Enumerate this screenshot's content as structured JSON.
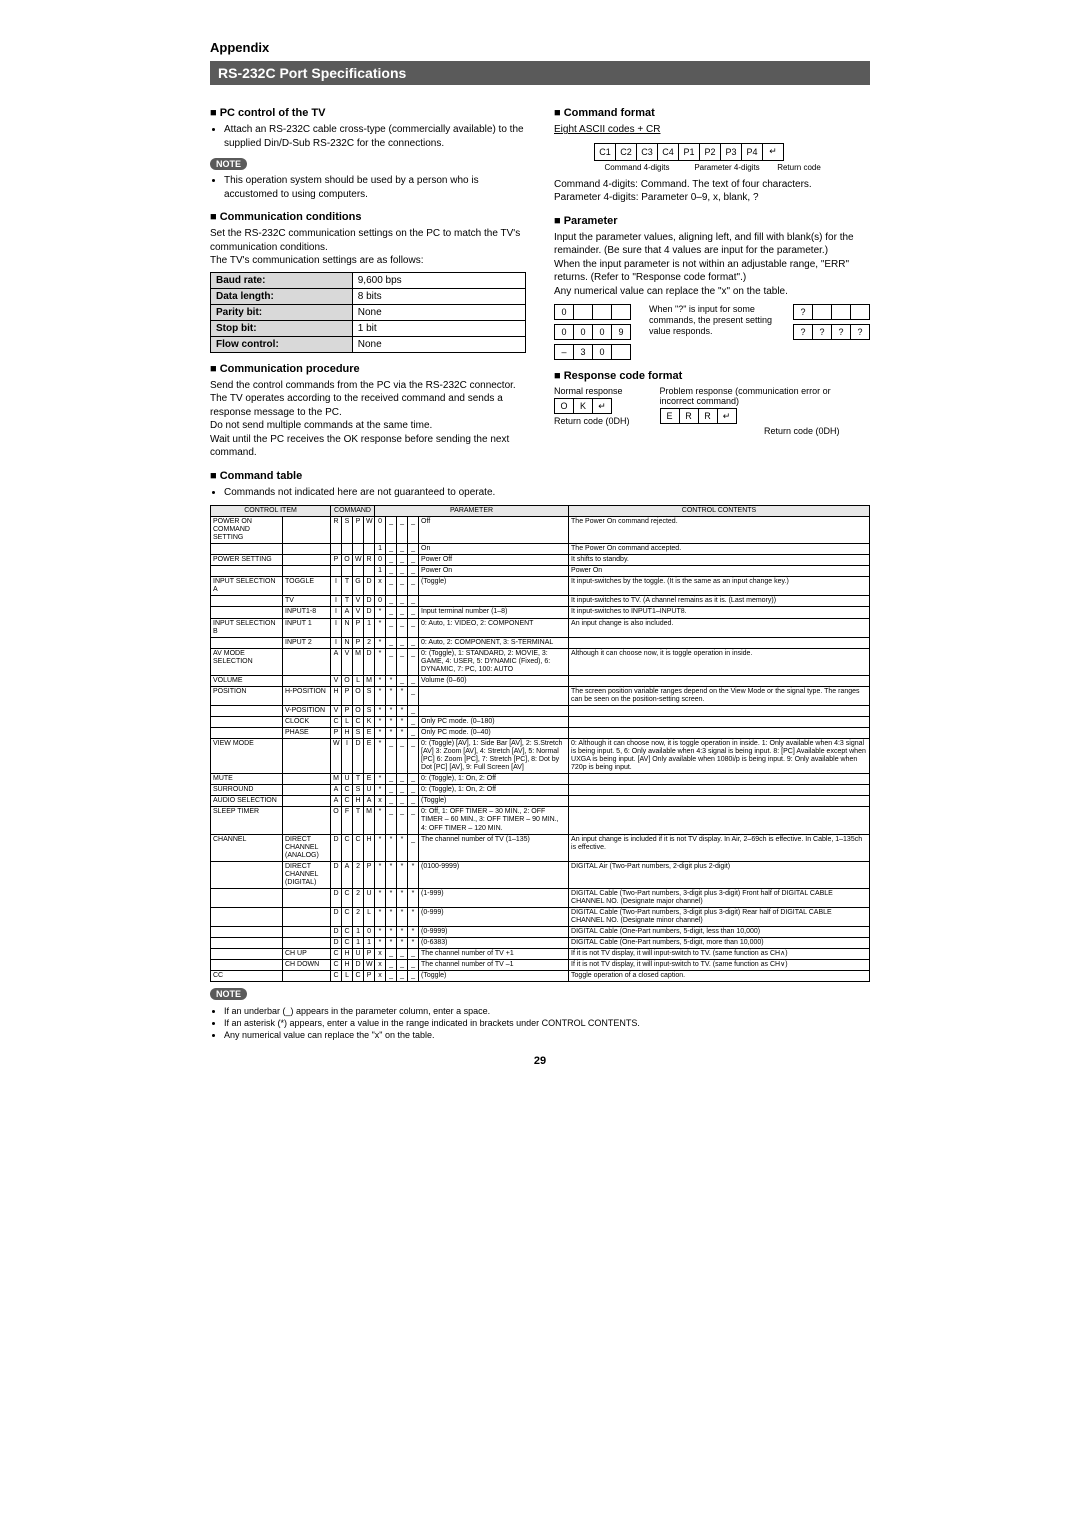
{
  "appendix": "Appendix",
  "banner": "RS-232C Port Specifications",
  "pc_control": {
    "title": "PC control of the TV",
    "bullet": "Attach an RS-232C cable cross-type (commercially available) to the supplied Din/D-Sub RS-232C for the connections."
  },
  "note_label": "NOTE",
  "note1": "This operation system should be used by a person who is accustomed to using computers.",
  "comm_cond": {
    "title": "Communication conditions",
    "p1": "Set the RS-232C communication settings on the PC to match the TV's communication conditions.",
    "p2": "The TV's communication settings are as follows:",
    "rows": [
      [
        "Baud rate:",
        "9,600 bps"
      ],
      [
        "Data length:",
        "8 bits"
      ],
      [
        "Parity bit:",
        "None"
      ],
      [
        "Stop bit:",
        "1 bit"
      ],
      [
        "Flow control:",
        "None"
      ]
    ]
  },
  "comm_proc": {
    "title": "Communication procedure",
    "p1": "Send the control commands from the PC via the RS-232C connector.",
    "p2": "The TV operates according to the received command and sends a response message to the PC.",
    "p3": "Do not send multiple commands at the same time.",
    "p4": "Wait until the PC receives the OK response before sending the next command."
  },
  "cmd_format": {
    "title": "Command format",
    "sub": "Eight ASCII codes + CR",
    "cells": [
      "C1",
      "C2",
      "C3",
      "C4",
      "P1",
      "P2",
      "P3",
      "P4",
      "↵"
    ],
    "label_cmd": "Command 4-digits",
    "label_param": "Parameter 4-digits",
    "label_ret": "Return code",
    "desc1": "Command 4-digits: Command. The text of four characters.",
    "desc2": "Parameter 4-digits: Parameter 0–9, x, blank, ?"
  },
  "parameter": {
    "title": "Parameter",
    "p1": "Input the parameter values, aligning left, and fill with blank(s) for the remainder. (Be sure that 4 values are input for the parameter.)",
    "p2": "When the input parameter is not within an adjustable range, \"ERR\" returns. (Refer to \"Response code format\".)",
    "p3": "Any numerical value can replace the \"x\" on the table.",
    "side_text": "When \"?\" is input for some commands, the present setting value responds.",
    "rows_left": [
      [
        "0",
        "",
        "",
        ""
      ],
      [
        "0",
        "0",
        "0",
        "9"
      ],
      [
        "–",
        "3",
        "0",
        ""
      ]
    ],
    "rows_right": [
      [
        "?",
        "",
        "",
        ""
      ],
      [
        "?",
        "?",
        "?",
        "?"
      ]
    ]
  },
  "response": {
    "title": "Response code format",
    "normal_label": "Normal response",
    "normal_cells": [
      "O",
      "K",
      "↵"
    ],
    "normal_ret": "Return code (0DH)",
    "problem_label": "Problem response (communication error or incorrect command)",
    "problem_cells": [
      "E",
      "R",
      "R",
      "↵"
    ],
    "problem_ret": "Return code (0DH)"
  },
  "cmd_table": {
    "title": "Command table",
    "intro": "Commands not indicated here are not guaranteed to operate.",
    "headers": [
      "CONTROL ITEM",
      "COMMAND",
      "PARAMETER",
      "CONTROL CONTENTS"
    ],
    "rows": [
      {
        "i1": "POWER ON COMMAND SETTING",
        "i2": "",
        "cmd": [
          "R",
          "S",
          "P",
          "W"
        ],
        "p": [
          "0",
          "_",
          "_",
          "_"
        ],
        "param": "Off",
        "cc": "The Power On command rejected."
      },
      {
        "i1": "",
        "i2": "",
        "cmd": [
          "",
          "",
          "",
          ""
        ],
        "p": [
          "1",
          "_",
          "_",
          "_"
        ],
        "param": "On",
        "cc": "The Power On command accepted."
      },
      {
        "i1": "POWER SETTING",
        "i2": "",
        "cmd": [
          "P",
          "O",
          "W",
          "R"
        ],
        "p": [
          "0",
          "_",
          "_",
          "_"
        ],
        "param": "Power Off",
        "cc": "It shifts to standby."
      },
      {
        "i1": "",
        "i2": "",
        "cmd": [
          "",
          "",
          "",
          ""
        ],
        "p": [
          "1",
          "_",
          "_",
          "_"
        ],
        "param": "Power On",
        "cc": "Power On"
      },
      {
        "i1": "INPUT SELECTION A",
        "i2": "TOGGLE",
        "cmd": [
          "I",
          "T",
          "G",
          "D"
        ],
        "p": [
          "x",
          "_",
          "_",
          "_"
        ],
        "param": "(Toggle)",
        "cc": "It input-switches by the toggle. (It is the same as an input change key.)"
      },
      {
        "i1": "",
        "i2": "TV",
        "cmd": [
          "I",
          "T",
          "V",
          "D"
        ],
        "p": [
          "0",
          "_",
          "_",
          "_"
        ],
        "param": "",
        "cc": "It input-switches to TV. (A channel remains as it is. (Last memory))"
      },
      {
        "i1": "",
        "i2": "INPUT1-8",
        "cmd": [
          "I",
          "A",
          "V",
          "D"
        ],
        "p": [
          "*",
          "_",
          "_",
          "_"
        ],
        "param": "Input terminal number (1–8)",
        "cc": "It input-switches to INPUT1–INPUT8."
      },
      {
        "i1": "INPUT SELECTION B",
        "i2": "INPUT 1",
        "cmd": [
          "I",
          "N",
          "P",
          "1"
        ],
        "p": [
          "*",
          "_",
          "_",
          "_"
        ],
        "param": "0: Auto, 1: VIDEO, 2: COMPONENT",
        "cc": "An input change is also included."
      },
      {
        "i1": "",
        "i2": "INPUT 2",
        "cmd": [
          "I",
          "N",
          "P",
          "2"
        ],
        "p": [
          "*",
          "_",
          "_",
          "_"
        ],
        "param": "0: Auto, 2: COMPONENT, 3: S-TERMINAL",
        "cc": ""
      },
      {
        "i1": "AV MODE SELECTION",
        "i2": "",
        "cmd": [
          "A",
          "V",
          "M",
          "D"
        ],
        "p": [
          "*",
          "_",
          "_",
          "_"
        ],
        "param": "0: (Toggle), 1: STANDARD, 2: MOVIE, 3: GAME, 4: USER, 5: DYNAMIC (Fixed), 6: DYNAMIC, 7: PC, 100: AUTO",
        "cc": "Although it can choose now, it is toggle operation in inside."
      },
      {
        "i1": "VOLUME",
        "i2": "",
        "cmd": [
          "V",
          "O",
          "L",
          "M"
        ],
        "p": [
          "*",
          "*",
          "_",
          "_"
        ],
        "param": "Volume (0–60)",
        "cc": ""
      },
      {
        "i1": "POSITION",
        "i2": "H-POSITION",
        "cmd": [
          "H",
          "P",
          "O",
          "S"
        ],
        "p": [
          "*",
          "*",
          "*",
          "_"
        ],
        "param": "",
        "cc": "The screen position variable ranges depend on the View Mode or the signal type. The ranges can be seen on the position-setting screen."
      },
      {
        "i1": "",
        "i2": "V-POSITION",
        "cmd": [
          "V",
          "P",
          "O",
          "S"
        ],
        "p": [
          "*",
          "*",
          "*",
          "_"
        ],
        "param": "",
        "cc": ""
      },
      {
        "i1": "",
        "i2": "CLOCK",
        "cmd": [
          "C",
          "L",
          "C",
          "K"
        ],
        "p": [
          "*",
          "*",
          "*",
          "_"
        ],
        "param": "Only PC mode. (0–180)",
        "cc": ""
      },
      {
        "i1": "",
        "i2": "PHASE",
        "cmd": [
          "P",
          "H",
          "S",
          "E"
        ],
        "p": [
          "*",
          "*",
          "*",
          "_"
        ],
        "param": "Only PC mode. (0–40)",
        "cc": ""
      },
      {
        "i1": "VIEW MODE",
        "i2": "",
        "cmd": [
          "W",
          "I",
          "D",
          "E"
        ],
        "p": [
          "*",
          "_",
          "_",
          "_"
        ],
        "param": "0: (Toggle) [AV], 1: Side Bar [AV], 2: S.Stretch [AV] 3: Zoom [AV], 4: Stretch [AV], 5: Normal [PC] 6: Zoom [PC], 7: Stretch [PC], 8: Dot by Dot [PC] [AV], 9: Full Screen [AV]",
        "cc": "0: Although it can choose now, it is toggle operation in inside. 1: Only available when 4:3 signal is being input. 5, 6: Only available when 4:3 signal is being input. 8: [PC] Available except when UXGA is being input. [AV] Only available when 1080i/p is being input. 9: Only available when 720p is being input."
      },
      {
        "i1": "MUTE",
        "i2": "",
        "cmd": [
          "M",
          "U",
          "T",
          "E"
        ],
        "p": [
          "*",
          "_",
          "_",
          "_"
        ],
        "param": "0: (Toggle), 1: On, 2: Off",
        "cc": ""
      },
      {
        "i1": "SURROUND",
        "i2": "",
        "cmd": [
          "A",
          "C",
          "S",
          "U"
        ],
        "p": [
          "*",
          "_",
          "_",
          "_"
        ],
        "param": "0: (Toggle), 1: On, 2: Off",
        "cc": ""
      },
      {
        "i1": "AUDIO SELECTION",
        "i2": "",
        "cmd": [
          "A",
          "C",
          "H",
          "A"
        ],
        "p": [
          "x",
          "_",
          "_",
          "_"
        ],
        "param": "(Toggle)",
        "cc": ""
      },
      {
        "i1": "SLEEP TIMER",
        "i2": "",
        "cmd": [
          "O",
          "F",
          "T",
          "M"
        ],
        "p": [
          "*",
          "_",
          "_",
          "_"
        ],
        "param": "0: Off, 1: OFF TIMER – 30 MIN., 2: OFF TIMER – 60 MIN., 3: OFF TIMER – 90 MIN., 4: OFF TIMER – 120 MIN.",
        "cc": ""
      },
      {
        "i1": "CHANNEL",
        "i2": "DIRECT CHANNEL (ANALOG)",
        "cmd": [
          "D",
          "C",
          "C",
          "H"
        ],
        "p": [
          "*",
          "*",
          "*",
          "_"
        ],
        "param": "The channel number of TV (1–135)",
        "cc": "An input change is included if it is not TV display. In Air, 2–69ch is effective. In Cable, 1–135ch is effective."
      },
      {
        "i1": "",
        "i2": "DIRECT CHANNEL (DIGITAL)",
        "cmd": [
          "D",
          "A",
          "2",
          "P"
        ],
        "p": [
          "*",
          "*",
          "*",
          "*"
        ],
        "param": "(0100-9999)",
        "cc": "DIGITAL Air (Two-Part numbers, 2-digit plus 2-digit)"
      },
      {
        "i1": "",
        "i2": "",
        "cmd": [
          "D",
          "C",
          "2",
          "U"
        ],
        "p": [
          "*",
          "*",
          "*",
          "*"
        ],
        "param": "(1-999)",
        "cc": "DIGITAL Cable (Two-Part numbers, 3-digit plus 3-digit) Front half of DIGITAL CABLE CHANNEL NO. (Designate major channel)"
      },
      {
        "i1": "",
        "i2": "",
        "cmd": [
          "D",
          "C",
          "2",
          "L"
        ],
        "p": [
          "*",
          "*",
          "*",
          "*"
        ],
        "param": "(0-999)",
        "cc": "DIGITAL Cable (Two-Part numbers, 3-digit plus 3-digit) Rear half of DIGITAL CABLE CHANNEL NO. (Designate minor channel)"
      },
      {
        "i1": "",
        "i2": "",
        "cmd": [
          "D",
          "C",
          "1",
          "0"
        ],
        "p": [
          "*",
          "*",
          "*",
          "*"
        ],
        "param": "(0-9999)",
        "cc": "DIGITAL Cable (One-Part numbers, 5-digit, less than 10,000)"
      },
      {
        "i1": "",
        "i2": "",
        "cmd": [
          "D",
          "C",
          "1",
          "1"
        ],
        "p": [
          "*",
          "*",
          "*",
          "*"
        ],
        "param": "(0-6383)",
        "cc": "DIGITAL Cable (One-Part numbers, 5-digit, more than 10,000)"
      },
      {
        "i1": "",
        "i2": "CH UP",
        "cmd": [
          "C",
          "H",
          "U",
          "P"
        ],
        "p": [
          "x",
          "_",
          "_",
          "_"
        ],
        "param": "The channel number of TV +1",
        "cc": "If it is not TV display, it will input-switch to TV. (same function as CH∧)"
      },
      {
        "i1": "",
        "i2": "CH DOWN",
        "cmd": [
          "C",
          "H",
          "D",
          "W"
        ],
        "p": [
          "x",
          "_",
          "_",
          "_"
        ],
        "param": "The channel number of TV –1",
        "cc": "If it is not TV display, it will input-switch to TV. (same function as CH∨)"
      },
      {
        "i1": "CC",
        "i2": "",
        "cmd": [
          "C",
          "L",
          "C",
          "P"
        ],
        "p": [
          "x",
          "_",
          "_",
          "_"
        ],
        "param": "(Toggle)",
        "cc": "Toggle operation of a closed caption."
      }
    ]
  },
  "bottom_notes": [
    "If an underbar (_) appears in the parameter column, enter a space.",
    "If an asterisk (*) appears, enter a value in the range indicated in brackets under CONTROL CONTENTS.",
    "Any numerical value can replace the \"x\" on the table."
  ],
  "page_number": "29"
}
